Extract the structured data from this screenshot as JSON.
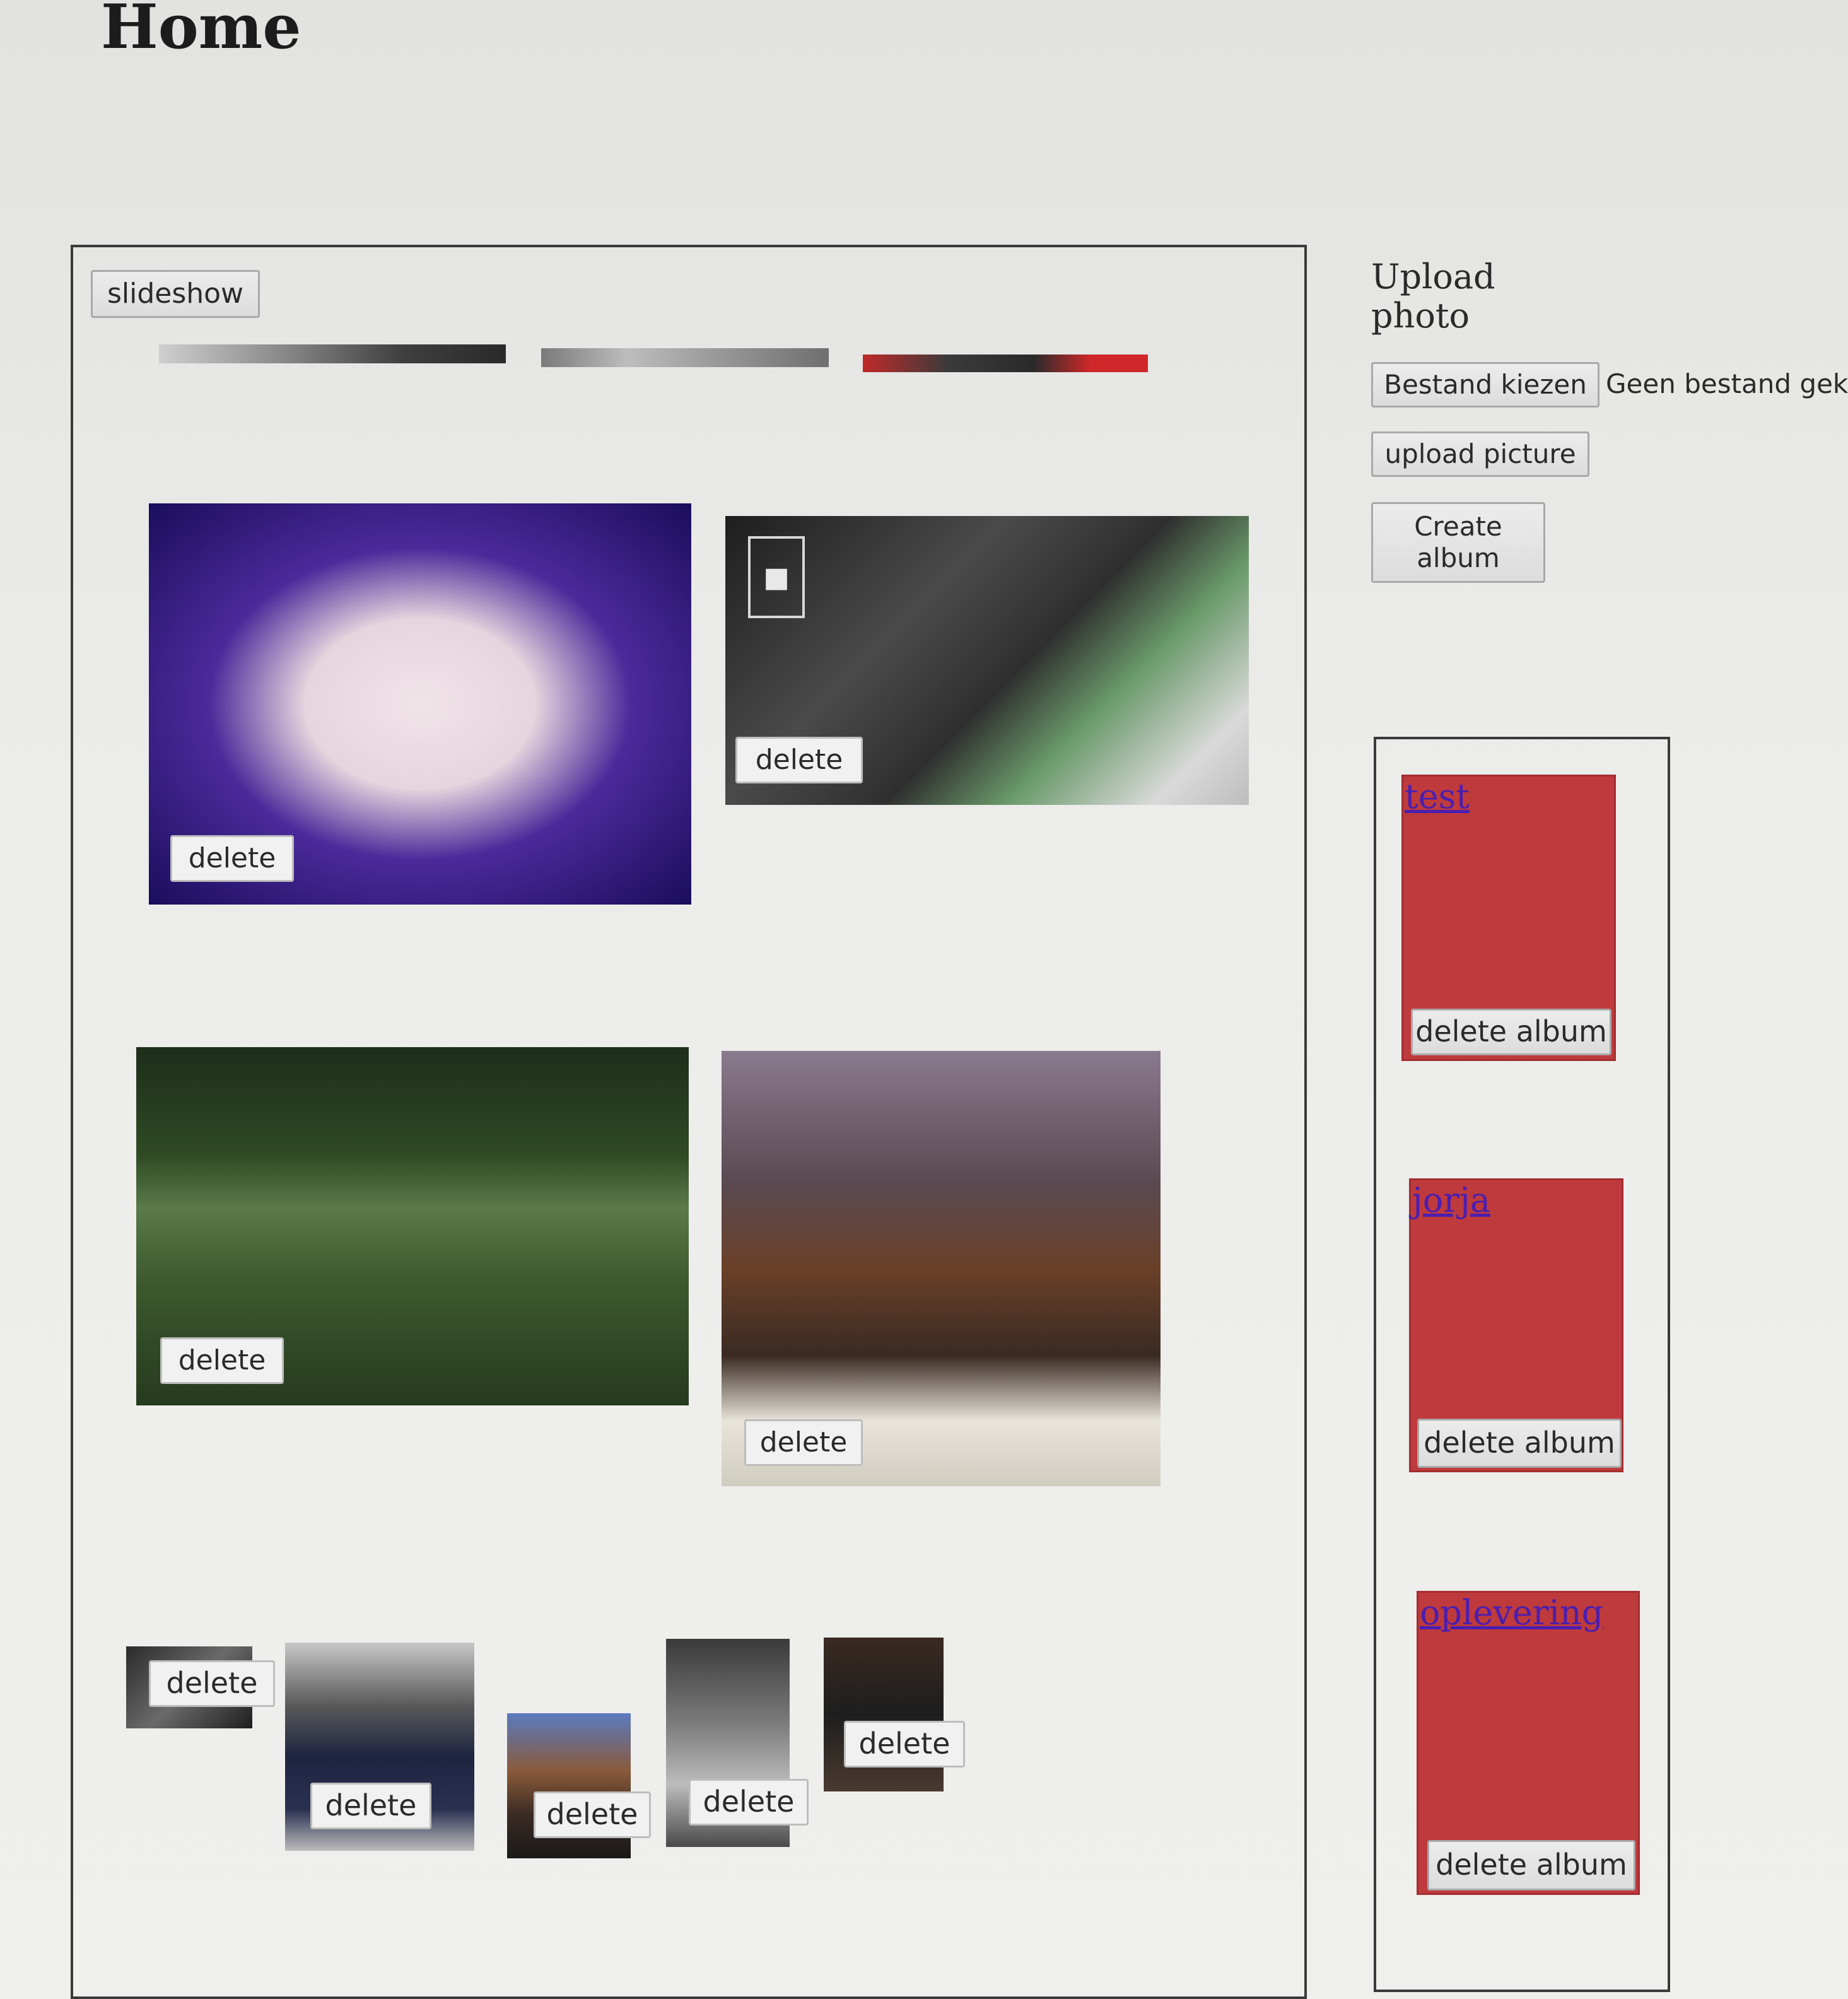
{
  "page": {
    "title": "Home"
  },
  "gallery": {
    "slideshow_label": "slideshow",
    "delete_label": "delete"
  },
  "upload": {
    "heading_line1": "Upload",
    "heading_line2": "photo",
    "choose_file_label": "Bestand kiezen",
    "file_status": "Geen bestand geko",
    "upload_label": "upload picture",
    "create_album_line1": "Create",
    "create_album_line2": "album"
  },
  "albums": [
    {
      "name": "test",
      "delete_label": "delete album"
    },
    {
      "name": "jorja",
      "delete_label": "delete album"
    },
    {
      "name": "oplevering",
      "delete_label": "delete album"
    }
  ],
  "colors": {
    "album_red": "#bf3a3c",
    "link_purple": "#4a1eb0"
  }
}
